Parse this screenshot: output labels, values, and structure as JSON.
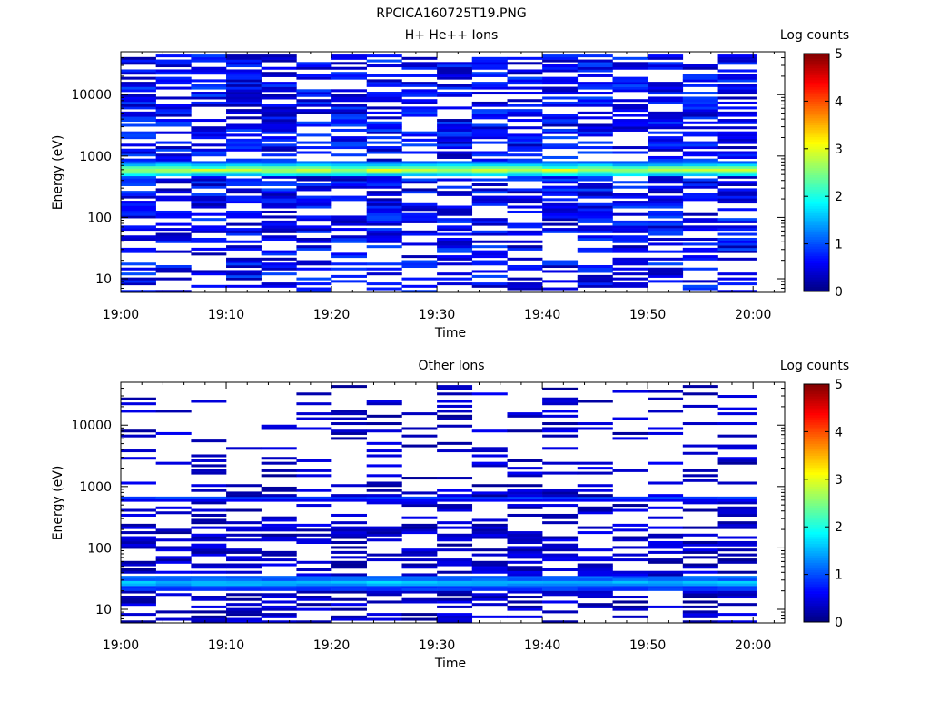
{
  "figure_title": "RPCICA160725T19.PNG",
  "chart_data": [
    {
      "type": "heatmap",
      "title": "H+ He++ Ions",
      "xlabel": "Time",
      "ylabel": "Energy (eV)",
      "x_ticks": [
        "19:00",
        "19:10",
        "19:20",
        "19:30",
        "19:40",
        "19:50",
        "20:00"
      ],
      "x_range": [
        "19:00",
        "20:03"
      ],
      "y_scale": "log",
      "y_ticks": [
        "10",
        "100",
        "1000",
        "10000"
      ],
      "y_range": [
        6,
        50000
      ],
      "colorbar": {
        "label": "Log counts",
        "ticks": [
          "0",
          "1",
          "2",
          "3",
          "4",
          "5"
        ],
        "range": [
          0,
          5
        ],
        "colormap": "jet"
      },
      "time_bins_minutes": [
        0,
        3.33,
        6.67,
        10,
        13.33,
        16.67,
        20,
        23.33,
        26.67,
        30,
        33.33,
        36.67,
        40,
        43.33,
        46.67,
        50,
        53.33,
        56.67,
        60.3
      ],
      "bands": [
        {
          "energy_eV": 600,
          "log_counts": 2.8
        },
        {
          "energy_eV": 550,
          "log_counts": 2.4
        },
        {
          "energy_eV": 660,
          "log_counts": 2.2
        },
        {
          "energy_eV": 500,
          "log_counts": 1.7
        },
        {
          "energy_eV": 720,
          "log_counts": 1.6
        },
        {
          "energy_eV": 790,
          "log_counts": 1.1
        }
      ],
      "background_log_counts": [
        0.2,
        1.0
      ],
      "background_energy_range_eV": [
        6,
        45000
      ]
    },
    {
      "type": "heatmap",
      "title": "Other Ions",
      "xlabel": "Time",
      "ylabel": "Energy (eV)",
      "x_ticks": [
        "19:00",
        "19:10",
        "19:20",
        "19:30",
        "19:40",
        "19:50",
        "20:00"
      ],
      "x_range": [
        "19:00",
        "20:03"
      ],
      "y_scale": "log",
      "y_ticks": [
        "10",
        "100",
        "1000",
        "10000"
      ],
      "y_range": [
        6,
        50000
      ],
      "colorbar": {
        "label": "Log counts",
        "ticks": [
          "0",
          "1",
          "2",
          "3",
          "4",
          "5"
        ],
        "range": [
          0,
          5
        ],
        "colormap": "jet"
      },
      "time_bins_minutes": [
        0,
        3.33,
        6.67,
        10,
        13.33,
        16.67,
        20,
        23.33,
        26.67,
        30,
        33.33,
        36.67,
        40,
        43.33,
        46.67,
        50,
        53.33,
        56.67,
        60.3
      ],
      "bands": [
        {
          "energy_eV": 28,
          "log_counts": 1.6
        },
        {
          "energy_eV": 25,
          "log_counts": 1.4
        },
        {
          "energy_eV": 32,
          "log_counts": 1.1
        },
        {
          "energy_eV": 22,
          "log_counts": 0.9
        },
        {
          "energy_eV": 650,
          "log_counts": 0.9
        },
        {
          "energy_eV": 600,
          "log_counts": 0.6
        }
      ],
      "background_log_counts": [
        0.1,
        0.6
      ],
      "background_energy_range_eV": [
        6,
        45000
      ]
    }
  ]
}
